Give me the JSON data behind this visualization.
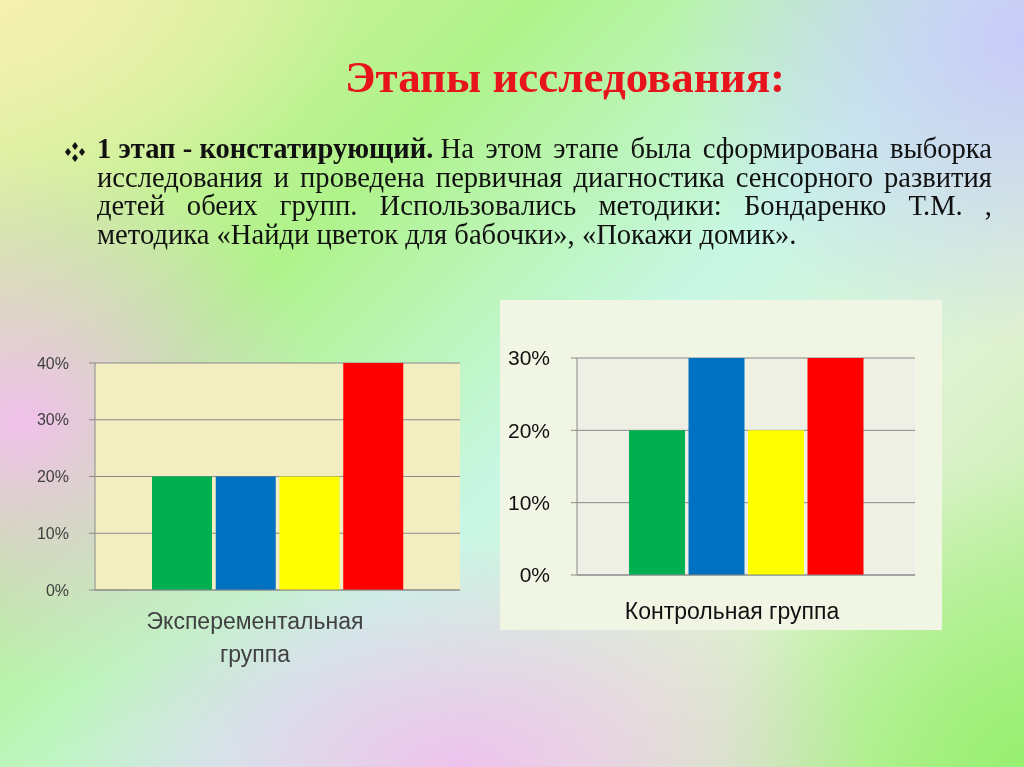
{
  "chart_data": [
    {
      "type": "other",
      "title": "Этапы исследования:",
      "annotations": [
        "1 этап - констатирующий. На этом этапе была сформирована выборка исследования и проведена первичная диагностика сенсорного развития детей обеих групп. Использовались методики: Бондаренко Т.М. , методика «Найди цветок для бабочки», «Покажи домик»."
      ]
    },
    {
      "type": "bar",
      "categories": [
        null,
        null,
        null,
        null
      ],
      "xlabel": "Эксперементальная группа",
      "values": [
        20,
        20,
        20,
        40
      ],
      "colors": [
        "#00b050",
        "#0070c0",
        "#ffff00",
        "#ff0000"
      ],
      "ylim": [
        0,
        40
      ],
      "yticks": [
        {
          "value": 0,
          "label": "0%"
        },
        {
          "value": 10,
          "label": "10%"
        },
        {
          "value": 20,
          "label": "20%"
        },
        {
          "value": 30,
          "label": "30%"
        },
        {
          "value": 40,
          "label": "40%"
        }
      ],
      "grid": "y"
    },
    {
      "type": "bar",
      "categories": [
        null,
        null,
        null,
        null
      ],
      "xlabel": "Контрольная группа",
      "values": [
        20,
        30,
        20,
        30
      ],
      "colors": [
        "#00b050",
        "#0070c0",
        "#ffff00",
        "#ff0000"
      ],
      "ylim": [
        0,
        30
      ],
      "yticks": [
        {
          "value": 0,
          "label": "0%"
        },
        {
          "value": 10,
          "label": "10%"
        },
        {
          "value": 20,
          "label": "20%"
        },
        {
          "value": 30,
          "label": "30%"
        }
      ],
      "grid": "y"
    }
  ]
}
